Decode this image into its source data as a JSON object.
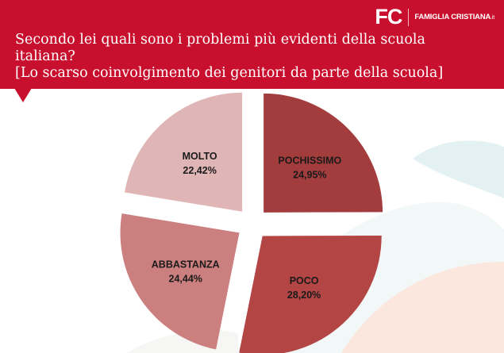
{
  "brand": {
    "logo_mark": "FC",
    "logo_text": "FAMIGLIA CRISTIANA",
    "logo_suffix": ".it"
  },
  "header": {
    "title_line1": "Secondo lei quali sono i problemi più evidenti della scuola",
    "title_line2": "italiana?",
    "title_line3": "[Lo scarso coinvolgimento dei genitori da parte della scuola]"
  },
  "colors": {
    "header": "#c8102e",
    "poco": "#b34545",
    "pochissimo": "#a33d3d",
    "abbastanza": "#cb7f7f",
    "molto": "#dfb5b5"
  },
  "chart_data": {
    "type": "pie",
    "title": "",
    "slices": [
      {
        "label": "POCHISSIMO",
        "value": 24.95,
        "display": "24,95%",
        "color": "#a33d3d"
      },
      {
        "label": "POCO",
        "value": 28.2,
        "display": "28,20%",
        "color": "#b34545"
      },
      {
        "label": "ABBASTANZA",
        "value": 24.44,
        "display": "24,44%",
        "color": "#cb7f7f"
      },
      {
        "label": "MOLTO",
        "value": 22.42,
        "display": "22,42%",
        "color": "#dfb5b5"
      }
    ],
    "legend": "none",
    "data_labels": "inside"
  }
}
